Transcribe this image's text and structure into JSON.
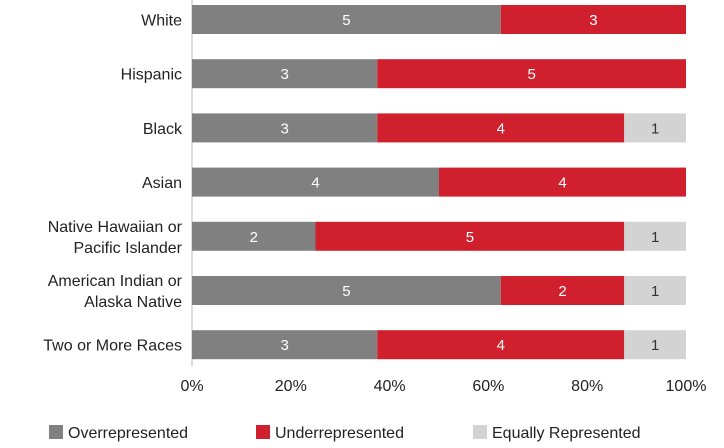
{
  "chart_data": {
    "type": "bar",
    "orientation": "horizontal",
    "stacked": "percent",
    "categories": [
      [
        "White"
      ],
      [
        "Hispanic"
      ],
      [
        "Black"
      ],
      [
        "Asian"
      ],
      [
        "Native Hawaiian or",
        "Pacific Islander"
      ],
      [
        "American Indian or",
        "Alaska Native"
      ],
      [
        "Two or More Races"
      ]
    ],
    "series": [
      {
        "name": "Overrepresented",
        "color": "#808080",
        "label_color": "#ffffff",
        "values": [
          5,
          3,
          3,
          4,
          2,
          5,
          3
        ]
      },
      {
        "name": "Underrepresented",
        "color": "#d0202e",
        "label_color": "#ffffff",
        "values": [
          3,
          5,
          4,
          4,
          5,
          2,
          4
        ]
      },
      {
        "name": "Equally Represented",
        "color": "#d3d3d3",
        "label_color": "#333333",
        "values": [
          0,
          0,
          1,
          0,
          1,
          1,
          1
        ]
      }
    ],
    "xlim": [
      0,
      100
    ],
    "xticks": [
      "0%",
      "20%",
      "40%",
      "60%",
      "80%",
      "100%"
    ],
    "grid": false,
    "legend_position": "bottom"
  }
}
